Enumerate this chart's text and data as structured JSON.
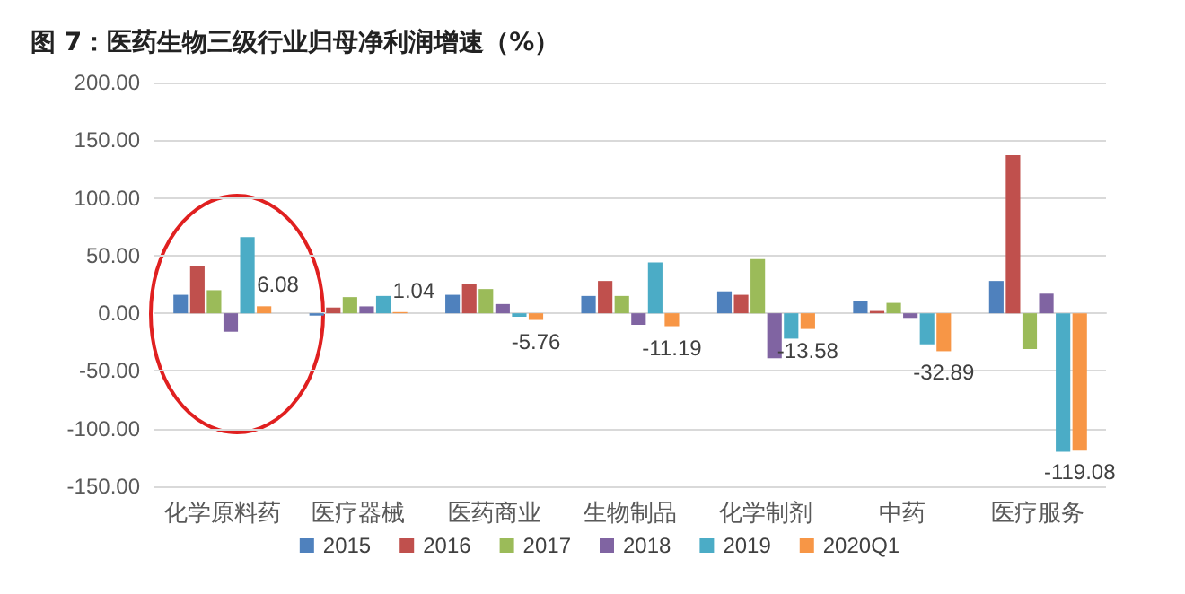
{
  "chart_data": {
    "type": "bar",
    "title": "图 7：医药生物三级行业归母净利润增速（%）",
    "categories": [
      "化学原料药",
      "医疗器械",
      "医药商业",
      "生物制品",
      "化学制剂",
      "中药",
      "医疗服务"
    ],
    "series": [
      {
        "name": "2015",
        "color": "#4f81bd",
        "values": [
          16,
          -2,
          16,
          15,
          19,
          11,
          28
        ]
      },
      {
        "name": "2016",
        "color": "#c0504d",
        "values": [
          41,
          5,
          25,
          28,
          16,
          2,
          137
        ]
      },
      {
        "name": "2017",
        "color": "#9bbb59",
        "values": [
          20,
          14,
          21,
          15,
          47,
          9,
          -31
        ]
      },
      {
        "name": "2018",
        "color": "#8064a2",
        "values": [
          -16,
          6,
          8,
          -10,
          -39,
          -4,
          17
        ]
      },
      {
        "name": "2019",
        "color": "#4bacc6",
        "values": [
          66,
          15,
          -3,
          44,
          -22,
          -27,
          -120
        ]
      },
      {
        "name": "2020Q1",
        "color": "#f79646",
        "values": [
          6.08,
          1.04,
          -5.76,
          -11.19,
          -13.58,
          -32.89,
          -119.08
        ],
        "value_labels": [
          "6.08",
          "1.04",
          "-5.76",
          "-11.19",
          "-13.58",
          "-32.89",
          "-119.08"
        ]
      }
    ],
    "ylim": [
      -150,
      200
    ],
    "yticks": [
      {
        "value": -150,
        "label": "-150.00"
      },
      {
        "value": -100,
        "label": "-100.00"
      },
      {
        "value": -50,
        "label": "-50.00"
      },
      {
        "value": 0,
        "label": "0.00"
      },
      {
        "value": 50,
        "label": "50.00"
      },
      {
        "value": 100,
        "label": "100.00"
      },
      {
        "value": 150,
        "label": "150.00"
      },
      {
        "value": 200,
        "label": "200.00"
      }
    ],
    "grid": "y",
    "legend": "bottom"
  }
}
